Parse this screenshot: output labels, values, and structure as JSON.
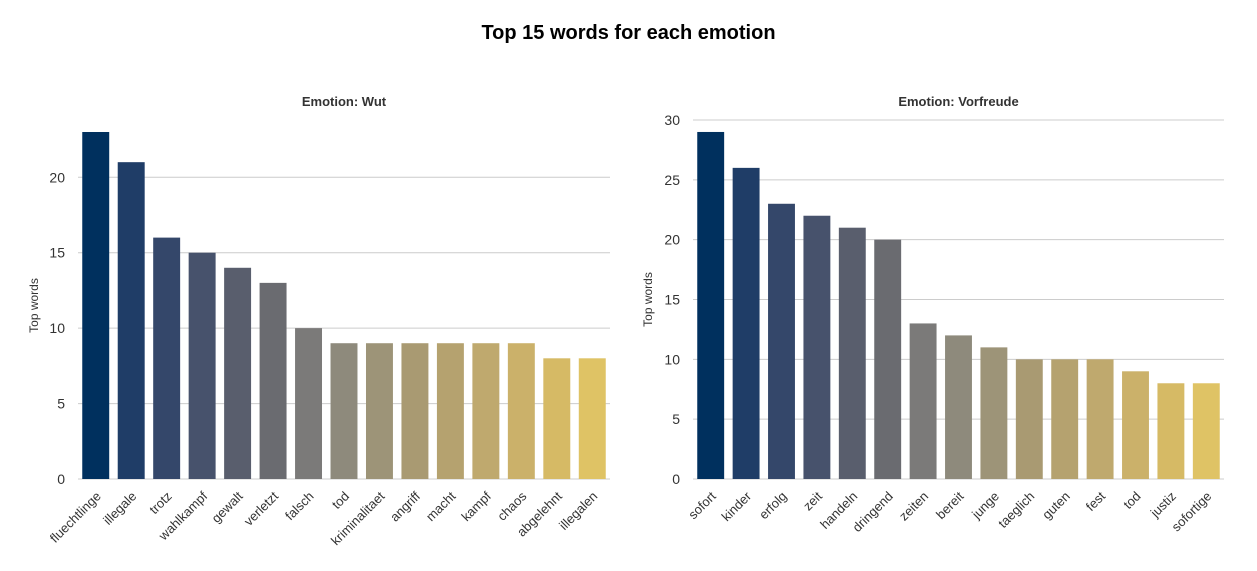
{
  "figure": {
    "title": "Top 15 words for each emotion"
  },
  "chart_data": [
    {
      "type": "bar",
      "title": "Emotion: Wut",
      "xlabel": "",
      "ylabel": "Top words",
      "ylim": [
        0,
        23
      ],
      "yticks": [
        0,
        5,
        10,
        15,
        20
      ],
      "grid": "horizontal",
      "categories": [
        "fluechtlinge",
        "illegale",
        "trotz",
        "wahlkampf",
        "gewalt",
        "verletzt",
        "falsch",
        "tod",
        "kriminalitaet",
        "angriff",
        "macht",
        "kampf",
        "chaos",
        "abgelehnt",
        "illegalen"
      ],
      "values": [
        23,
        21,
        16,
        15,
        14,
        13,
        10,
        9,
        9,
        9,
        9,
        9,
        9,
        8,
        8
      ],
      "colors": [
        "#00305e",
        "#1f3d67",
        "#34476a",
        "#47526c",
        "#595e6d",
        "#6a6b70",
        "#7b7a79",
        "#8e8a7c",
        "#9d9478",
        "#a99a72",
        "#b5a26f",
        "#bfa96e",
        "#cbb16a",
        "#d6ba65",
        "#dfc365"
      ]
    },
    {
      "type": "bar",
      "title": "Emotion: Vorfreude",
      "xlabel": "",
      "ylabel": "Top words",
      "ylim": [
        0,
        30
      ],
      "yticks": [
        0,
        5,
        10,
        15,
        20,
        25,
        30
      ],
      "grid": "horizontal",
      "categories": [
        "sofort",
        "kinder",
        "erfolg",
        "zeit",
        "handeln",
        "dringend",
        "zeiten",
        "bereit",
        "junge",
        "taeglich",
        "guten",
        "fest",
        "tod",
        "justiz",
        "sofortige"
      ],
      "values": [
        29,
        26,
        23,
        22,
        21,
        20,
        13,
        12,
        11,
        10,
        10,
        10,
        9,
        8,
        8
      ],
      "colors": [
        "#00305e",
        "#1f3d67",
        "#34476a",
        "#47526c",
        "#595e6d",
        "#6a6b70",
        "#7b7a79",
        "#8e8a7c",
        "#9d9478",
        "#a99a72",
        "#b5a26f",
        "#bfa96e",
        "#cbb16a",
        "#d6ba65",
        "#dfc365"
      ]
    }
  ]
}
